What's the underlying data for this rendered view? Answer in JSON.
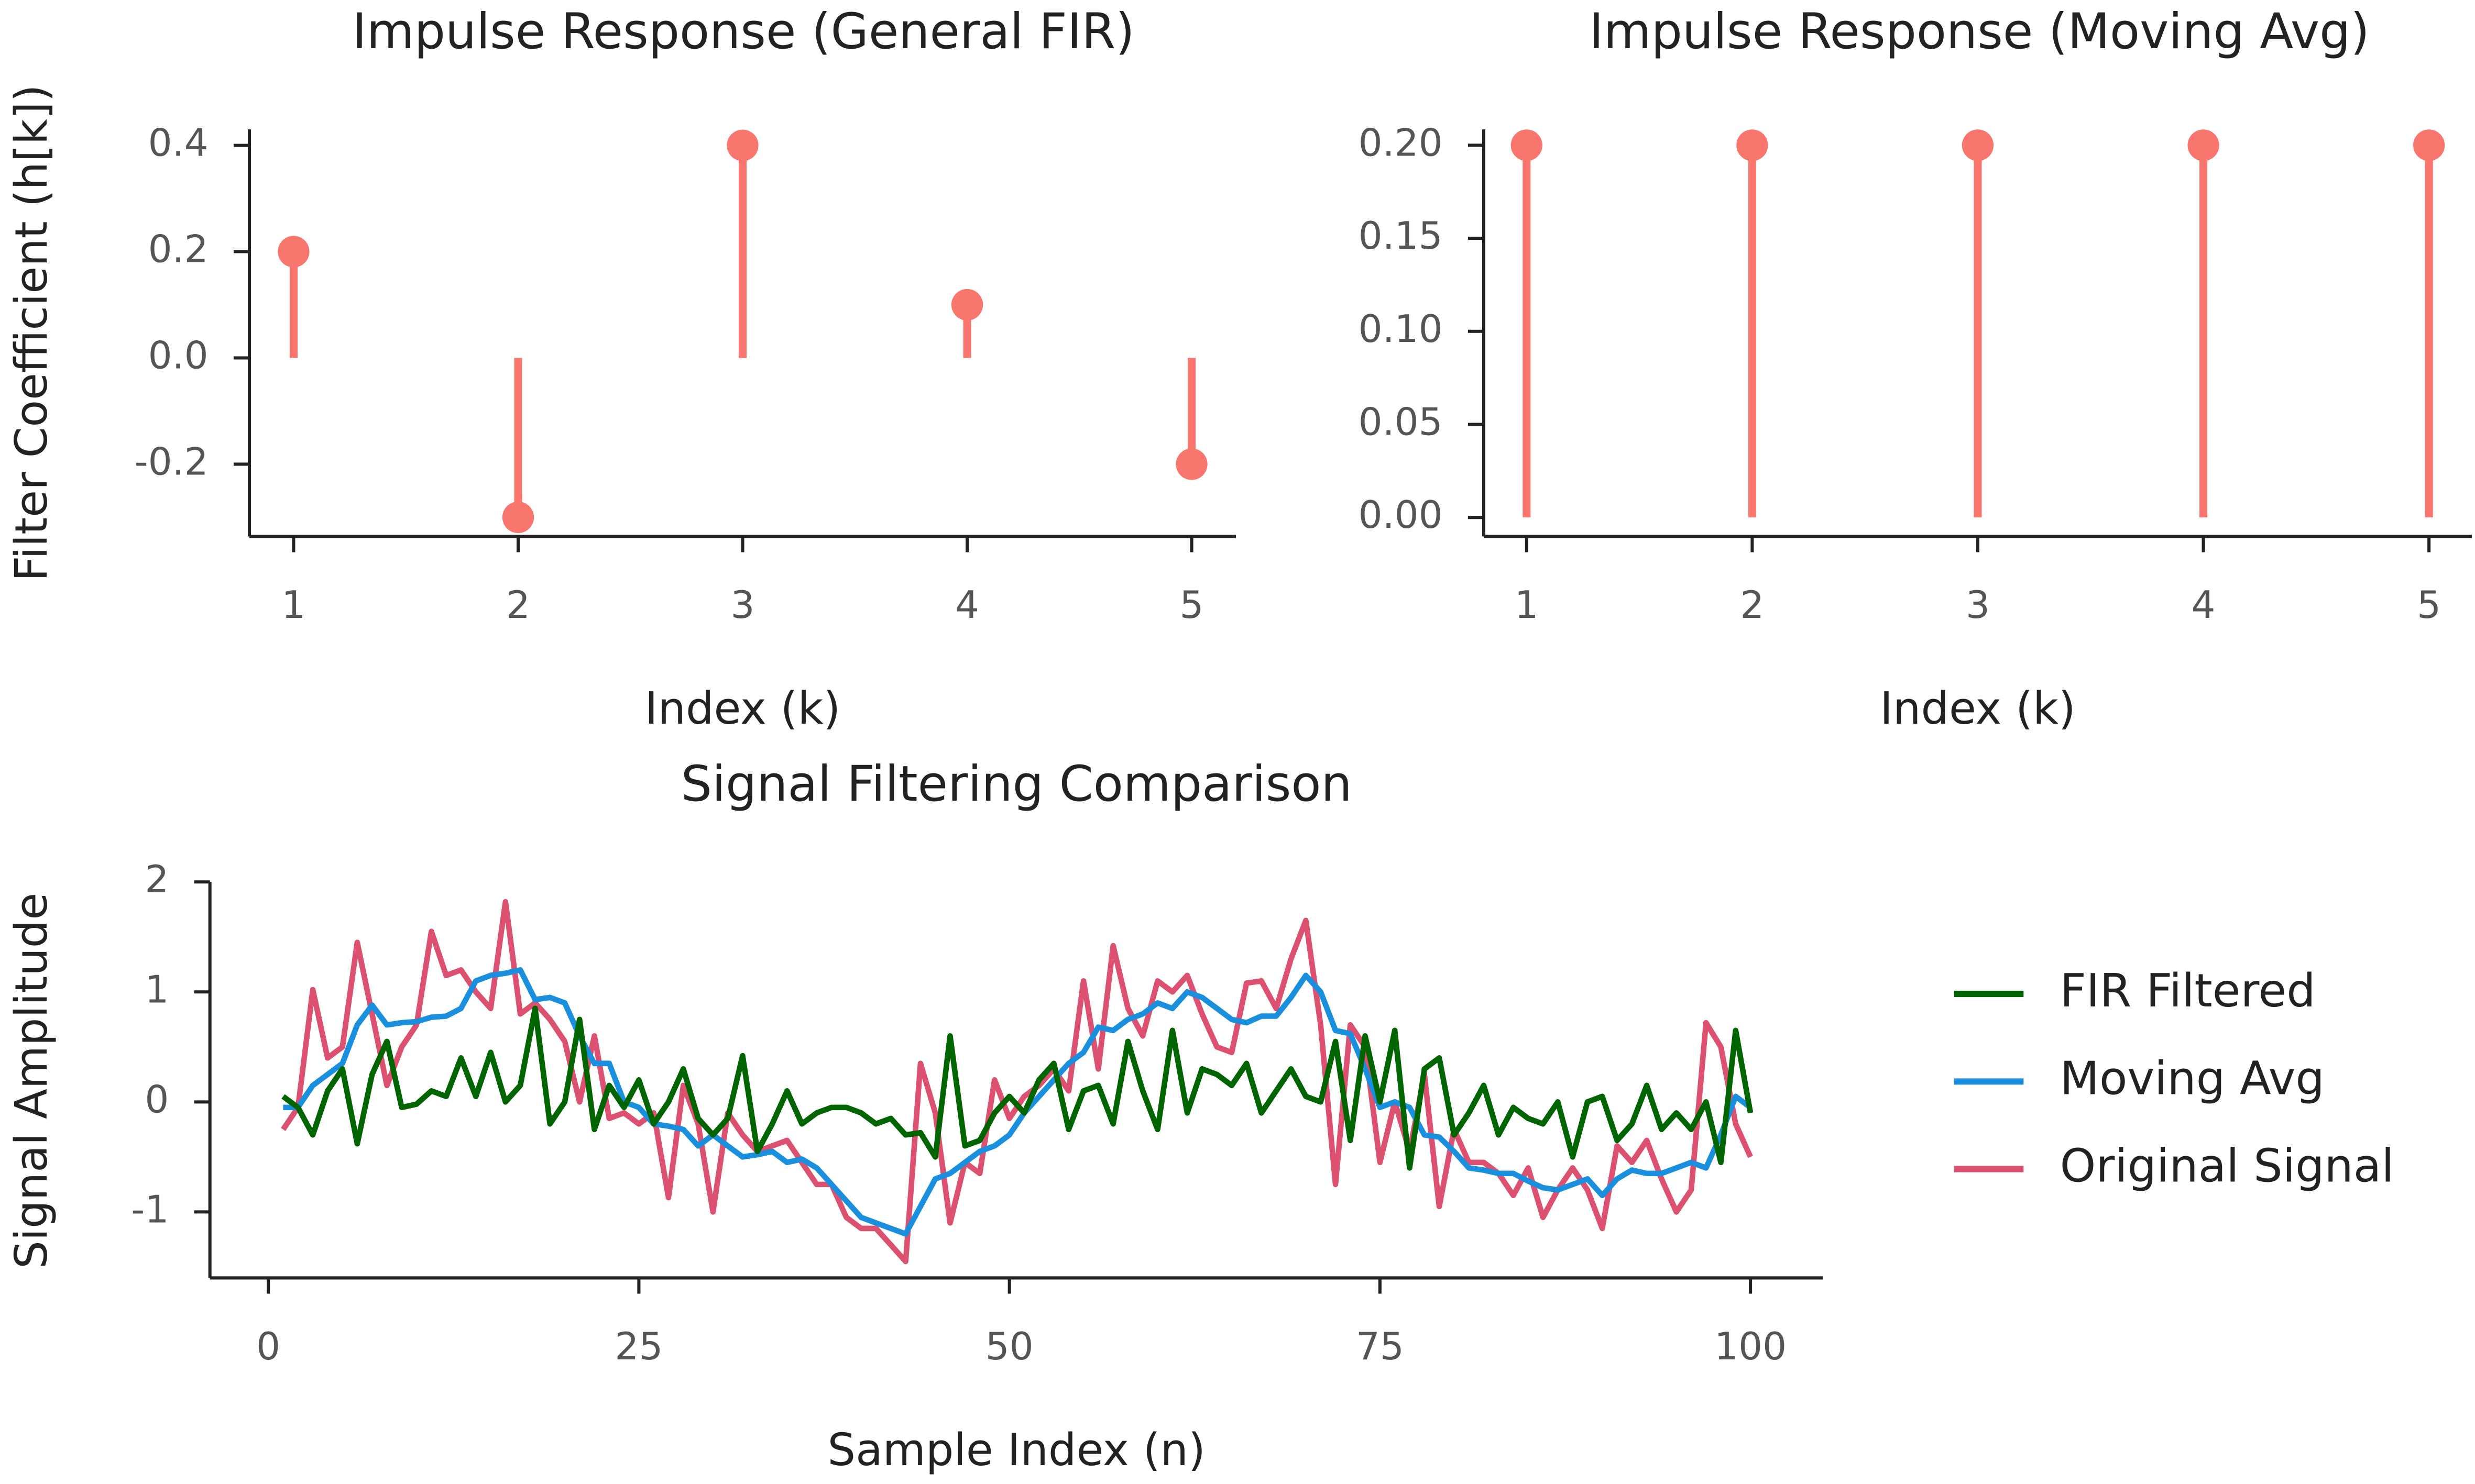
{
  "chart_data": [
    {
      "type": "stem",
      "title": "Impulse Response (General FIR)",
      "x_label": "Index (k)",
      "y_label": "Filter Coefficient (h[k])",
      "x": [
        1,
        2,
        3,
        4,
        5
      ],
      "values": [
        0.2,
        -0.3,
        0.4,
        0.1,
        -0.2
      ],
      "color": "#f8766d",
      "xlim": [
        0.803,
        5.197
      ],
      "xticks": [
        1,
        2,
        3,
        4,
        5
      ],
      "ylim": [
        -0.336,
        0.43
      ],
      "yticks": [
        -0.2,
        {
          "value": 0,
          "label": "0.0"
        },
        0.2,
        0.4
      ]
    },
    {
      "type": "stem",
      "title": "Impulse Response (Moving Avg)",
      "x_label": "Index (k)",
      "x": [
        1,
        2,
        3,
        4,
        5
      ],
      "values": [
        0.2,
        0.2,
        0.2,
        0.2,
        0.2
      ],
      "color": "#f8766d",
      "xlim": [
        0.81,
        5.19
      ],
      "xticks": [
        1,
        2,
        3,
        4,
        5
      ],
      "ylim": [
        -0.0102,
        0.2085
      ],
      "yticks": [
        {
          "value": 0,
          "label": "0.00"
        },
        {
          "value": 0.05,
          "label": "0.05"
        },
        {
          "value": 0.1,
          "label": "0.10"
        },
        {
          "value": 0.15,
          "label": "0.15"
        },
        {
          "value": 0.2,
          "label": "0.20"
        }
      ]
    },
    {
      "type": "line",
      "title": "Signal Filtering Comparison",
      "x_label": "Sample Index (n)",
      "y_label": "Signal Amplitude",
      "legend": "right",
      "x": [
        1,
        2,
        3,
        4,
        5,
        6,
        7,
        8,
        9,
        10,
        11,
        12,
        13,
        14,
        15,
        16,
        17,
        18,
        19,
        20,
        21,
        22,
        23,
        24,
        25,
        26,
        27,
        28,
        29,
        30,
        31,
        32,
        33,
        34,
        35,
        36,
        37,
        38,
        39,
        40,
        41,
        42,
        43,
        44,
        45,
        46,
        47,
        48,
        49,
        50,
        51,
        52,
        53,
        54,
        55,
        56,
        57,
        58,
        59,
        60,
        61,
        62,
        63,
        64,
        65,
        66,
        67,
        68,
        69,
        70,
        71,
        72,
        73,
        74,
        75,
        76,
        77,
        78,
        79,
        80,
        81,
        82,
        83,
        84,
        85,
        86,
        87,
        88,
        89,
        90,
        91,
        92,
        93,
        94,
        95,
        96,
        97,
        98,
        99,
        100
      ],
      "series": [
        {
          "name": "FIR Filtered",
          "color": "#006400",
          "values": [
            0.05,
            -0.05,
            -0.3,
            0.1,
            0.3,
            -0.38,
            0.25,
            0.55,
            -0.05,
            -0.02,
            0.1,
            0.05,
            0.4,
            0.05,
            0.45,
            0,
            0.15,
            0.85,
            -0.2,
            0,
            0.75,
            -0.25,
            0.15,
            -0.05,
            0.2,
            -0.2,
            0,
            0.3,
            -0.15,
            -0.3,
            -0.15,
            0.42,
            -0.45,
            -0.2,
            0.1,
            -0.2,
            -0.1,
            -0.05,
            -0.05,
            -0.1,
            -0.2,
            -0.15,
            -0.3,
            -0.28,
            -0.5,
            0.6,
            -0.4,
            -0.35,
            -0.1,
            0.05,
            -0.1,
            0.2,
            0.35,
            -0.25,
            0.1,
            0.15,
            -0.2,
            0.55,
            0.1,
            -0.25,
            0.65,
            -0.1,
            0.3,
            0.25,
            0.15,
            0.35,
            -0.1,
            0.1,
            0.3,
            0.05,
            0,
            0.55,
            -0.35,
            0.6,
            0,
            0.65,
            -0.6,
            0.3,
            0.4,
            -0.3,
            -0.1,
            0.15,
            -0.3,
            -0.05,
            -0.15,
            -0.2,
            0,
            -0.5,
            0,
            0.05,
            -0.35,
            -0.2,
            0.15,
            -0.25,
            -0.1,
            -0.25,
            0,
            -0.55,
            0.65,
            -0.1
          ]
        },
        {
          "name": "Moving Avg",
          "color": "#1a8fdd",
          "values": [
            -0.05,
            -0.05,
            0.15,
            0.25,
            0.35,
            0.7,
            0.88,
            0.7,
            0.72,
            0.73,
            0.77,
            0.78,
            0.85,
            1.1,
            1.15,
            1.17,
            1.2,
            0.93,
            0.95,
            0.9,
            0.6,
            0.35,
            0.35,
            0,
            -0.05,
            -0.2,
            -0.22,
            -0.25,
            -0.4,
            -0.3,
            -0.4,
            -0.5,
            -0.48,
            -0.45,
            -0.55,
            -0.52,
            -0.6,
            -0.75,
            -0.9,
            -1.05,
            -1.1,
            -1.15,
            -1.2,
            -0.95,
            -0.7,
            -0.65,
            -0.55,
            -0.45,
            -0.4,
            -0.3,
            -0.1,
            0.05,
            0.2,
            0.35,
            0.45,
            0.68,
            0.65,
            0.75,
            0.8,
            0.9,
            0.85,
            1,
            0.95,
            0.85,
            0.75,
            0.72,
            0.78,
            0.78,
            0.95,
            1.15,
            1,
            0.65,
            0.62,
            0.3,
            -0.05,
            0,
            -0.05,
            -0.3,
            -0.32,
            -0.45,
            -0.6,
            -0.62,
            -0.65,
            -0.65,
            -0.72,
            -0.78,
            -0.8,
            -0.75,
            -0.7,
            -0.85,
            -0.7,
            -0.62,
            -0.65,
            -0.65,
            -0.6,
            -0.55,
            -0.6,
            -0.3,
            0.05,
            -0.05
          ]
        },
        {
          "name": "Original Signal",
          "color": "#dc5070",
          "values": [
            -0.25,
            -0.05,
            1.02,
            0.4,
            0.5,
            1.45,
            0.8,
            0.15,
            0.5,
            0.7,
            1.55,
            1.15,
            1.2,
            1,
            0.85,
            1.82,
            0.8,
            0.9,
            0.75,
            0.55,
            0,
            0.6,
            -0.15,
            -0.1,
            -0.2,
            -0.1,
            -0.87,
            0.15,
            -0.2,
            -1,
            -0.1,
            -0.3,
            -0.45,
            -0.4,
            -0.35,
            -0.55,
            -0.75,
            -0.75,
            -1.05,
            -1.15,
            -1.15,
            -1.3,
            -1.45,
            0.35,
            -0.1,
            -1.1,
            -0.55,
            -0.65,
            0.2,
            -0.15,
            0.05,
            0.15,
            0.3,
            0.1,
            1.1,
            0.3,
            1.42,
            0.85,
            0.6,
            1.1,
            1,
            1.15,
            0.8,
            0.5,
            0.45,
            1.08,
            1.1,
            0.85,
            1.3,
            1.65,
            0.7,
            -0.75,
            0.7,
            0.5,
            -0.55,
            0,
            -0.45,
            0.25,
            -0.95,
            -0.25,
            -0.55,
            -0.55,
            -0.65,
            -0.85,
            -0.6,
            -1.05,
            -0.8,
            -0.6,
            -0.8,
            -1.15,
            -0.4,
            -0.55,
            -0.35,
            -0.7,
            -1,
            -0.8,
            0.72,
            0.5,
            -0.2,
            -0.5
          ]
        }
      ],
      "xlim": [
        -3.94,
        104.9
      ],
      "xticks": [
        0,
        25,
        50,
        75,
        100
      ],
      "ylim": [
        -1.6,
        2
      ],
      "yticks": [
        -1,
        0,
        1,
        2
      ]
    }
  ]
}
